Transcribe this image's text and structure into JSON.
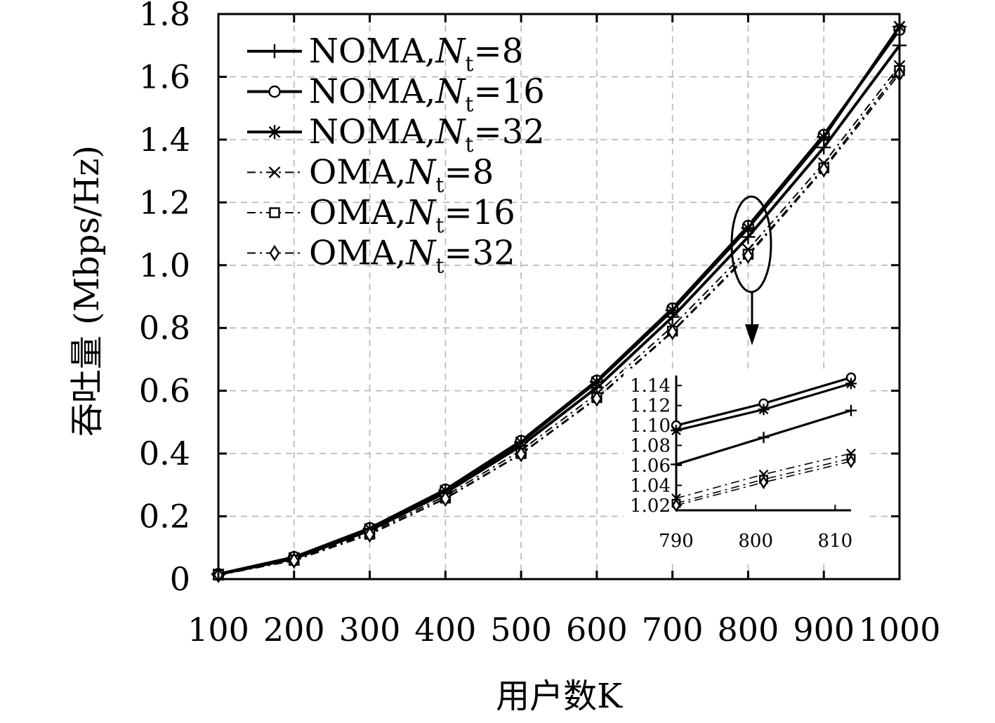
{
  "chart_data": {
    "type": "line",
    "xlabel": "用户数K",
    "ylabel": "吞吐量 (Mbps/Hz)",
    "xlim": [
      100,
      1000
    ],
    "ylim": [
      0,
      1.8
    ],
    "grid": true,
    "legend_position": "top-left",
    "x": [
      100,
      200,
      300,
      400,
      500,
      600,
      700,
      800,
      900,
      1000
    ],
    "x_ticks": [
      "100",
      "200",
      "300",
      "400",
      "500",
      "600",
      "700",
      "800",
      "900",
      "1000"
    ],
    "y_ticks": [
      "0",
      "0.2",
      "0.4",
      "0.6",
      "0.8",
      "1.0",
      "1.2",
      "1.4",
      "1.6",
      "1.8"
    ],
    "series": [
      {
        "name": "NOMA,Nt=8",
        "label_main": "NOMA,",
        "label_var": "N",
        "label_sub": "t",
        "label_val": "=8",
        "marker": "plus",
        "dash": "solid",
        "values": [
          0.015,
          0.065,
          0.155,
          0.275,
          0.425,
          0.61,
          0.835,
          1.09,
          1.375,
          1.7
        ]
      },
      {
        "name": "NOMA,Nt=16",
        "label_main": "NOMA,",
        "label_var": "N",
        "label_sub": "t",
        "label_val": "=16",
        "marker": "circle",
        "dash": "solid",
        "values": [
          0.016,
          0.07,
          0.162,
          0.285,
          0.44,
          0.632,
          0.862,
          1.125,
          1.415,
          1.75
        ]
      },
      {
        "name": "NOMA,Nt=32",
        "label_main": "NOMA,",
        "label_var": "N",
        "label_sub": "t",
        "label_val": "=32",
        "marker": "star",
        "dash": "solid",
        "values": [
          0.016,
          0.068,
          0.16,
          0.282,
          0.436,
          0.628,
          0.856,
          1.118,
          1.408,
          1.76
        ]
      },
      {
        "name": "OMA,Nt=8",
        "label_main": "OMA,",
        "label_var": "N",
        "label_sub": "t",
        "label_val": "=8",
        "marker": "x",
        "dash": "dashdot",
        "values": [
          0.014,
          0.062,
          0.148,
          0.265,
          0.41,
          0.59,
          0.805,
          1.05,
          1.325,
          1.635
        ]
      },
      {
        "name": "OMA,Nt=16",
        "label_main": "OMA,",
        "label_var": "N",
        "label_sub": "t",
        "label_val": "=16",
        "marker": "square",
        "dash": "dashdot",
        "values": [
          0.013,
          0.06,
          0.143,
          0.258,
          0.4,
          0.578,
          0.79,
          1.035,
          1.31,
          1.62
        ]
      },
      {
        "name": "OMA,Nt=32",
        "label_main": "OMA,",
        "label_var": "N",
        "label_sub": "t",
        "label_val": "=32",
        "marker": "diamond",
        "dash": "dashdot",
        "values": [
          0.013,
          0.059,
          0.142,
          0.256,
          0.398,
          0.575,
          0.787,
          1.03,
          1.305,
          1.61
        ]
      }
    ],
    "annotation": "ellipse around K=800 with arrow to zoomed inset",
    "inset": {
      "xlim": [
        790,
        812
      ],
      "ylim": [
        1.015,
        1.15
      ],
      "x_ticks": [
        "790",
        "800",
        "810"
      ],
      "y_ticks": [
        "1.02",
        "1.04",
        "1.06",
        "1.08",
        "1.10",
        "1.12",
        "1.14"
      ],
      "x": [
        790,
        801,
        812
      ],
      "series_values": [
        [
          1.061,
          1.088,
          1.115
        ],
        [
          1.1,
          1.122,
          1.148
        ],
        [
          1.095,
          1.116,
          1.142
        ],
        [
          1.027,
          1.051,
          1.072
        ],
        [
          1.022,
          1.046,
          1.067
        ],
        [
          1.02,
          1.043,
          1.064
        ]
      ]
    }
  }
}
